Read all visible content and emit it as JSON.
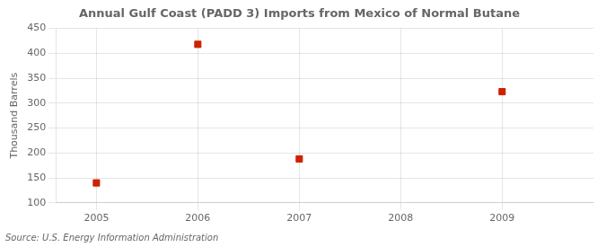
{
  "chart_data": {
    "type": "scatter",
    "title": "Annual Gulf Coast (PADD 3) Imports from Mexico of Normal Butane",
    "ylabel": "Thousand Barrels",
    "source": "Source: U.S. Energy Information Administration",
    "x": [
      2005,
      2006,
      2007,
      2009
    ],
    "values": [
      140,
      418,
      188,
      323
    ],
    "color": "#cc2200",
    "marker": "square",
    "xlim": [
      2004.6,
      2009.9
    ],
    "xticks": [
      2005,
      2006,
      2007,
      2008,
      2009
    ],
    "ylim": [
      100,
      450
    ],
    "yticks": [
      100,
      150,
      200,
      250,
      300,
      350,
      400,
      450
    ],
    "grid": true
  }
}
